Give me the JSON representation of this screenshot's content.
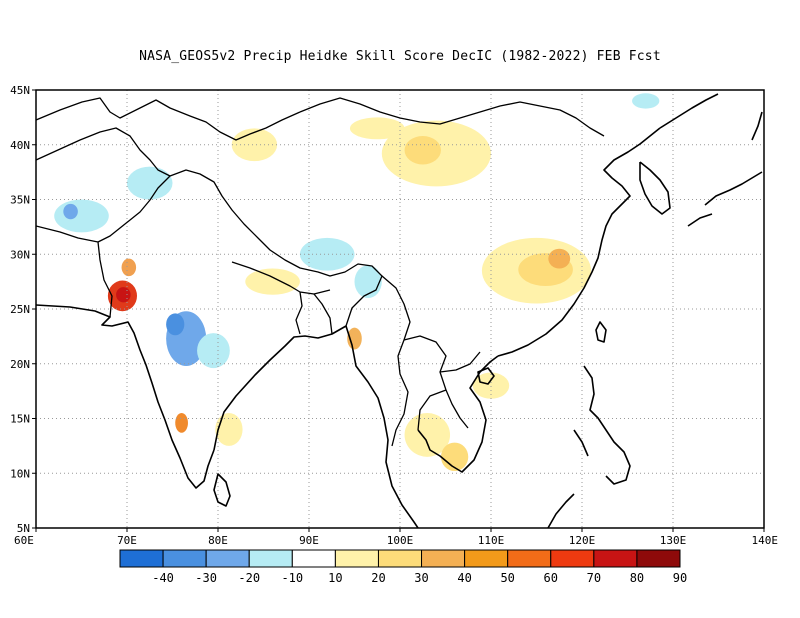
{
  "title": "NASA_GEOS5v2 Precip Heidke Skill Score DecIC (1982-2022) FEB Fcst",
  "map": {
    "lon_range": [
      60,
      140
    ],
    "lat_range": [
      5,
      45
    ],
    "lon_ticks": [
      {
        "value": 60,
        "label": "60E"
      },
      {
        "value": 70,
        "label": "70E"
      },
      {
        "value": 80,
        "label": "80E"
      },
      {
        "value": 90,
        "label": "90E"
      },
      {
        "value": 100,
        "label": "100E"
      },
      {
        "value": 110,
        "label": "110E"
      },
      {
        "value": 120,
        "label": "120E"
      },
      {
        "value": 130,
        "label": "130E"
      },
      {
        "value": 140,
        "label": "140E"
      }
    ],
    "lat_ticks": [
      {
        "value": 5,
        "label": "5N"
      },
      {
        "value": 10,
        "label": "10N"
      },
      {
        "value": 15,
        "label": "15N"
      },
      {
        "value": 20,
        "label": "20N"
      },
      {
        "value": 25,
        "label": "25N"
      },
      {
        "value": 30,
        "label": "30N"
      },
      {
        "value": 35,
        "label": "35N"
      },
      {
        "value": 40,
        "label": "40N"
      },
      {
        "value": 45,
        "label": "45N"
      }
    ],
    "gridlines": "dotted",
    "patches": [
      {
        "lon": 69.5,
        "lat": 26.2,
        "rx": 1.6,
        "ry": 1.4,
        "color": "#e03a1a"
      },
      {
        "lon": 69.6,
        "lat": 26.3,
        "rx": 0.8,
        "ry": 0.7,
        "color": "#c81414"
      },
      {
        "lon": 70.2,
        "lat": 28.8,
        "rx": 0.8,
        "ry": 0.8,
        "color": "#f0a050"
      },
      {
        "lon": 76.0,
        "lat": 14.6,
        "rx": 0.7,
        "ry": 0.9,
        "color": "#f08a2c"
      },
      {
        "lon": 95.0,
        "lat": 22.3,
        "rx": 0.8,
        "ry": 1.0,
        "color": "#f2b25a"
      },
      {
        "lon": 76.5,
        "lat": 22.3,
        "rx": 2.2,
        "ry": 2.5,
        "color": "#6fa8ea"
      },
      {
        "lon": 75.3,
        "lat": 23.6,
        "rx": 1.0,
        "ry": 1.0,
        "color": "#4a90e0"
      },
      {
        "lon": 79.5,
        "lat": 21.2,
        "rx": 1.8,
        "ry": 1.6,
        "color": "#b6ecf4"
      },
      {
        "lon": 65.0,
        "lat": 33.5,
        "rx": 3.0,
        "ry": 1.5,
        "color": "#b6ecf4"
      },
      {
        "lon": 63.8,
        "lat": 33.9,
        "rx": 0.8,
        "ry": 0.7,
        "color": "#6fa8ea"
      },
      {
        "lon": 92.0,
        "lat": 30.0,
        "rx": 3.0,
        "ry": 1.5,
        "color": "#b6ecf4"
      },
      {
        "lon": 96.5,
        "lat": 27.5,
        "rx": 1.5,
        "ry": 1.5,
        "color": "#b6ecf4"
      },
      {
        "lon": 104.0,
        "lat": 39.2,
        "rx": 6.0,
        "ry": 3.0,
        "color": "#fff2aa"
      },
      {
        "lon": 102.5,
        "lat": 39.5,
        "rx": 2.0,
        "ry": 1.3,
        "color": "#fddc7a"
      },
      {
        "lon": 115.0,
        "lat": 28.5,
        "rx": 6.0,
        "ry": 3.0,
        "color": "#fff2aa"
      },
      {
        "lon": 116.0,
        "lat": 28.6,
        "rx": 3.0,
        "ry": 1.5,
        "color": "#fddc7a"
      },
      {
        "lon": 117.5,
        "lat": 29.6,
        "rx": 1.2,
        "ry": 0.9,
        "color": "#f4b054"
      },
      {
        "lon": 86.0,
        "lat": 27.5,
        "rx": 3.0,
        "ry": 1.2,
        "color": "#fff2aa"
      },
      {
        "lon": 103.0,
        "lat": 13.5,
        "rx": 2.5,
        "ry": 2.0,
        "color": "#fff2aa"
      },
      {
        "lon": 106.0,
        "lat": 11.5,
        "rx": 1.5,
        "ry": 1.3,
        "color": "#fddc7a"
      },
      {
        "lon": 81.2,
        "lat": 14.0,
        "rx": 1.5,
        "ry": 1.5,
        "color": "#fff2aa"
      },
      {
        "lon": 72.5,
        "lat": 36.5,
        "rx": 2.5,
        "ry": 1.5,
        "color": "#b6ecf4"
      },
      {
        "lon": 84.0,
        "lat": 40.0,
        "rx": 2.5,
        "ry": 1.5,
        "color": "#fff2aa"
      },
      {
        "lon": 97.5,
        "lat": 41.5,
        "rx": 3.0,
        "ry": 1.0,
        "color": "#fff2aa"
      },
      {
        "lon": 127.0,
        "lat": 44.0,
        "rx": 1.5,
        "ry": 0.7,
        "color": "#b6ecf4"
      },
      {
        "lon": 110.0,
        "lat": 18.0,
        "rx": 2.0,
        "ry": 1.2,
        "color": "#fff2aa"
      }
    ]
  },
  "colorbar": {
    "colors": [
      "#1e6fd6",
      "#4a90e0",
      "#6fa8ea",
      "#b6ecf4",
      "#ffffff",
      "#fff2aa",
      "#fddc7a",
      "#f4b054",
      "#f39a1a",
      "#f26c18",
      "#ee3a10",
      "#c81414",
      "#8e0a0a"
    ],
    "labels": [
      "-40",
      "-30",
      "-20",
      "-10",
      "10",
      "20",
      "30",
      "40",
      "50",
      "60",
      "70",
      "80",
      "90"
    ]
  }
}
